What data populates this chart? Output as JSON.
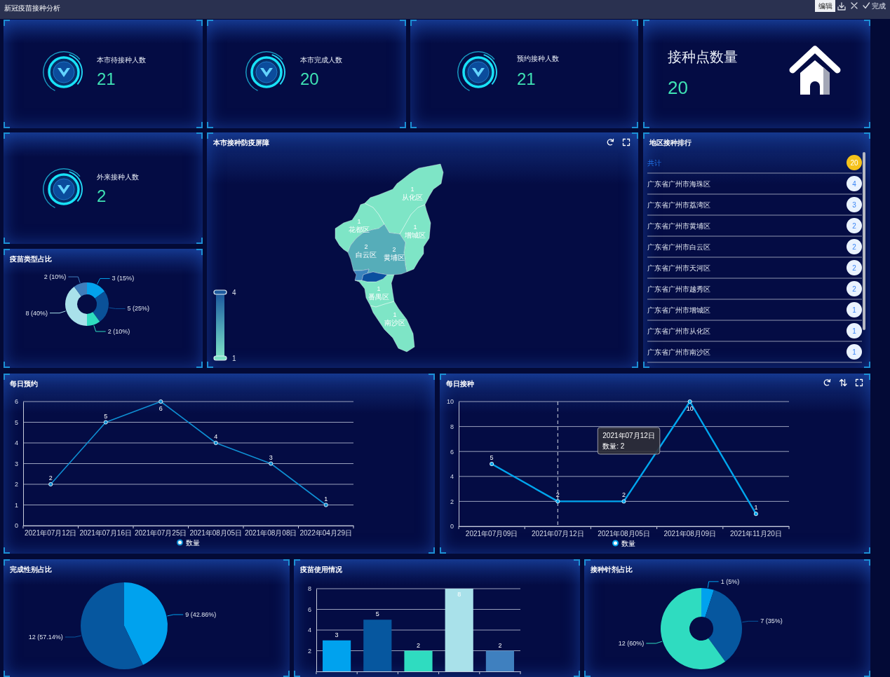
{
  "chart_data": [
    {
      "type": "other",
      "title": "新冠疫苗接种分析",
      "annotations": [
        "编辑",
        "完成"
      ]
    },
    {
      "type": "other",
      "title": "本市待接种人数",
      "annotations": [
        "21"
      ]
    },
    {
      "type": "other",
      "title": "本市完成人数",
      "annotations": [
        "20"
      ]
    },
    {
      "type": "other",
      "title": "预约接种人数",
      "annotations": [
        "21"
      ]
    },
    {
      "type": "other",
      "title": "接种点数量",
      "annotations": [
        "20"
      ]
    },
    {
      "type": "other",
      "title": "外来接种人数",
      "annotations": [
        "2"
      ]
    },
    {
      "type": "other",
      "title": "本市接种防疫屏障",
      "categories": [
        "从化区",
        "花都区",
        "增城区",
        "白云区",
        "黄埔区",
        "番禺区",
        "南沙区"
      ],
      "values": [
        1,
        1,
        1,
        2,
        2,
        1,
        1
      ],
      "data_labels": true,
      "annotations": [
        "4",
        "1"
      ]
    },
    {
      "type": "other",
      "title": "地区接种排行",
      "categories": [
        "共计",
        "广东省广州市海珠区",
        "广东省广州市荔湾区",
        "广东省广州市黄埔区",
        "广东省广州市白云区",
        "广东省广州市天河区",
        "广东省广州市越秀区",
        "广东省广州市增城区",
        "广东省广州市从化区",
        "广东省广州市南沙区"
      ],
      "values": [
        20,
        4,
        3,
        2,
        2,
        2,
        2,
        1,
        1,
        1
      ],
      "data_labels": true
    },
    {
      "type": "donut",
      "title": "疫苗类型占比",
      "categories": [
        null,
        null,
        null,
        null,
        null
      ],
      "values": [
        3,
        5,
        2,
        8,
        2
      ],
      "colors": [
        "#03a2ec",
        "#0a5198",
        "#2fdcc0",
        "#a9e1ea",
        "#3f7dbb"
      ],
      "value_labels": [
        "3 (15%)",
        "5 (25%)",
        "2 (10%)",
        "8 (40%)",
        "2 (10%)"
      ]
    },
    {
      "type": "line",
      "title": "每日预约",
      "categories": [
        "2021年07月12日",
        "2021年07月16日",
        "2021年07月25日",
        "2021年08月05日",
        "2021年08月08日",
        "2022年04月29日"
      ],
      "series": [
        {
          "name": "数量",
          "color": "#0f8fd3",
          "values": [
            2,
            5,
            6,
            4,
            3,
            1
          ]
        }
      ],
      "ylim": [
        0,
        6
      ],
      "yticks": [
        0,
        1,
        2,
        3,
        4,
        5,
        6
      ],
      "grid": "y",
      "legend": "bottom",
      "marker": "circle",
      "data_labels": true
    },
    {
      "type": "line",
      "title": "每日接种",
      "categories": [
        "2021年07月09日",
        "2021年07月12日",
        "2021年08月05日",
        "2021年08月09日",
        "2021年11月20日"
      ],
      "series": [
        {
          "name": "数量",
          "color": "#00a6ee",
          "values": [
            5,
            2,
            2,
            10,
            1
          ]
        }
      ],
      "ylim": [
        0,
        10
      ],
      "yticks": [
        0,
        2,
        4,
        6,
        8,
        10
      ],
      "grid": "y",
      "legend": "bottom",
      "marker": "circle",
      "data_labels": true,
      "ref_lines": [
        {
          "axis": "x",
          "value": "2021年07月12日",
          "color": "#d8dce6",
          "line_style": "dashed"
        }
      ],
      "annotations": [
        "2021年07月12日",
        "数量: 2"
      ]
    },
    {
      "type": "pie",
      "title": "完成性别占比",
      "categories": [
        null,
        null
      ],
      "values": [
        9,
        12
      ],
      "colors": [
        "#00a2ee",
        "#06579f"
      ],
      "value_labels": [
        "9 (42.86%)",
        "12 (57.14%)"
      ]
    },
    {
      "type": "bar",
      "title": "疫苗使用情况",
      "categories": [
        null,
        null,
        null,
        null,
        null
      ],
      "values": [
        3,
        5,
        2,
        8,
        2
      ],
      "colors": [
        "#00a2ee",
        "#06579f",
        "#2fdcc0",
        "#a9e1ea",
        "#3f80bf"
      ],
      "ylim": [
        0,
        8
      ],
      "yticks": [
        2,
        4,
        6,
        8
      ],
      "grid": "y",
      "data_labels": true
    },
    {
      "type": "donut",
      "title": "接种针剂占比",
      "categories": [
        null,
        null,
        null
      ],
      "values": [
        1,
        7,
        12
      ],
      "colors": [
        "#00a2ee",
        "#06579f",
        "#2fdcc0"
      ],
      "value_labels": [
        "1 (5%)",
        "7 (35%)",
        "12 (60%)"
      ]
    }
  ]
}
